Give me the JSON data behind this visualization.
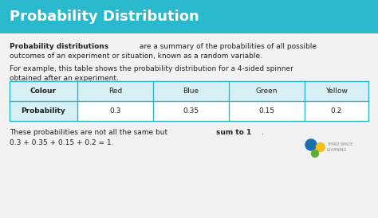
{
  "title": "Probability Distribution",
  "title_bg_color": "#29b8cc",
  "title_text_color": "#ffffff",
  "body_bg_color": "#f2f2f2",
  "para1_bold": "Probability distributions",
  "para1_rest": " are a summary of the probabilities of all possible",
  "para1_line2": "outcomes of an experiment or situation, known as a random variable.",
  "para2_line1": "For example, this table shows the probability distribution for a 4-sided spinner",
  "para2_line2": "obtained after an experiment.",
  "table_header": [
    "Colour",
    "Red",
    "Blue",
    "Green",
    "Yellow"
  ],
  "table_row1_label": "Probability",
  "table_row1_values": [
    "0.3",
    "0.35",
    "0.15",
    "0.2"
  ],
  "table_border_color": "#2bb5c8",
  "table_header_bg": "#d6f0f5",
  "table_row_bg": "#ffffff",
  "footer_text_normal": "These probabilities are not all the same but ",
  "footer_text_bold": "sum to 1",
  "footer_text_end": ".",
  "footer_equation": "0.3 + 0.35 + 0.15 + 0.2 = 1.",
  "text_color": "#222222",
  "font_size_title": 13,
  "font_size_body": 6.5,
  "font_size_table": 6.5,
  "font_size_logo": 3.5
}
